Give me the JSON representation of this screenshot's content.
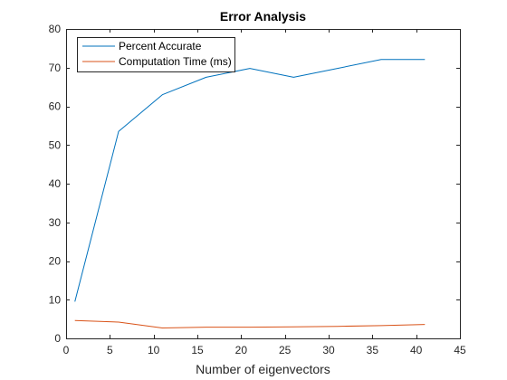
{
  "chart_data": {
    "type": "line",
    "title": "Error Analysis",
    "xlabel": "Number of eigenvectors",
    "ylabel": "",
    "xlim": [
      0,
      45
    ],
    "ylim": [
      0,
      80
    ],
    "xticks": [
      0,
      5,
      10,
      15,
      20,
      25,
      30,
      35,
      40,
      45
    ],
    "yticks": [
      0,
      10,
      20,
      30,
      40,
      50,
      60,
      70,
      80
    ],
    "grid": false,
    "legend_position": "top-left",
    "x": [
      1,
      6,
      11,
      16,
      21,
      26,
      31,
      36,
      41
    ],
    "series": [
      {
        "name": "Percent Accurate",
        "color": "#0072BD",
        "values": [
          9.5,
          53.5,
          63,
          67.5,
          69.8,
          67.5,
          69.8,
          72.1,
          72.1
        ]
      },
      {
        "name": "Computation Time (ms)",
        "color": "#D95319",
        "values": [
          4.6,
          4.2,
          2.7,
          2.9,
          2.9,
          3.0,
          3.1,
          3.3,
          3.6
        ]
      }
    ]
  }
}
